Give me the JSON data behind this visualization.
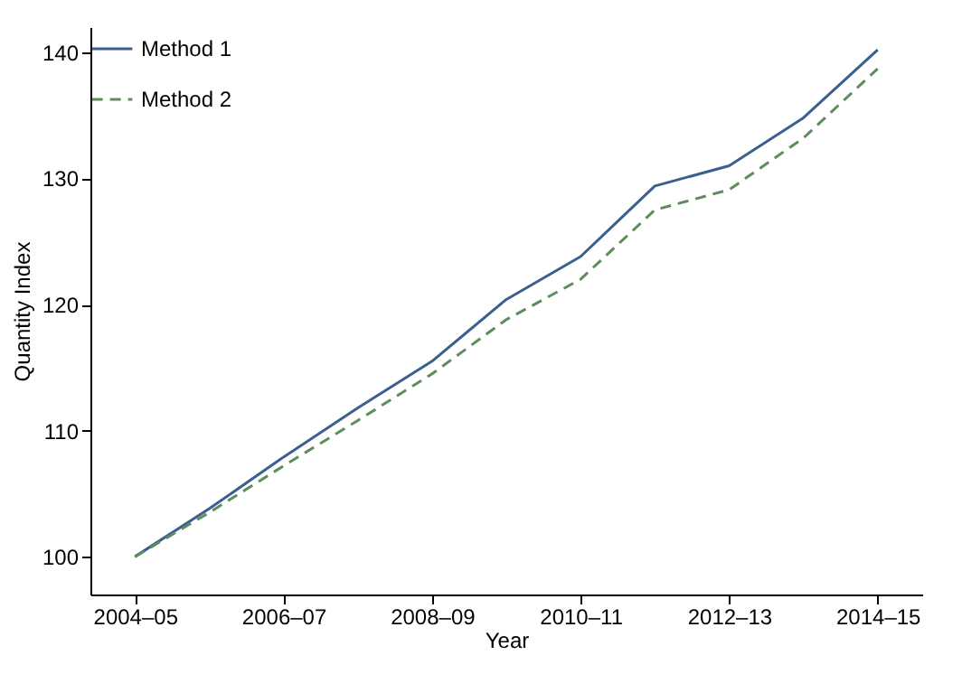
{
  "chart_data": {
    "type": "line",
    "xlabel": "Year",
    "ylabel": "Quantity Index",
    "categories": [
      "2004–05",
      null,
      "2006–07",
      null,
      "2008–09",
      null,
      "2010–11",
      null,
      "2012–13",
      null,
      "2014–15"
    ],
    "series": [
      {
        "name": "Method 1",
        "color": "#3b5f8e",
        "line_style": "solid",
        "values": [
          100,
          103.8,
          107.9,
          111.8,
          115.5,
          120.4,
          123.8,
          129.4,
          131.0,
          134.8,
          140.2
        ]
      },
      {
        "name": "Method 2",
        "color": "#5e8c5e",
        "line_style": "dashed",
        "values": [
          100,
          103.5,
          107.2,
          110.8,
          114.5,
          118.8,
          122.0,
          127.5,
          129.1,
          133.2,
          138.7
        ]
      }
    ],
    "ylim": [
      97,
      142
    ],
    "yticks": [
      100,
      110,
      120,
      130,
      140
    ],
    "grid": false,
    "legend": "top left",
    "marker": "none"
  }
}
